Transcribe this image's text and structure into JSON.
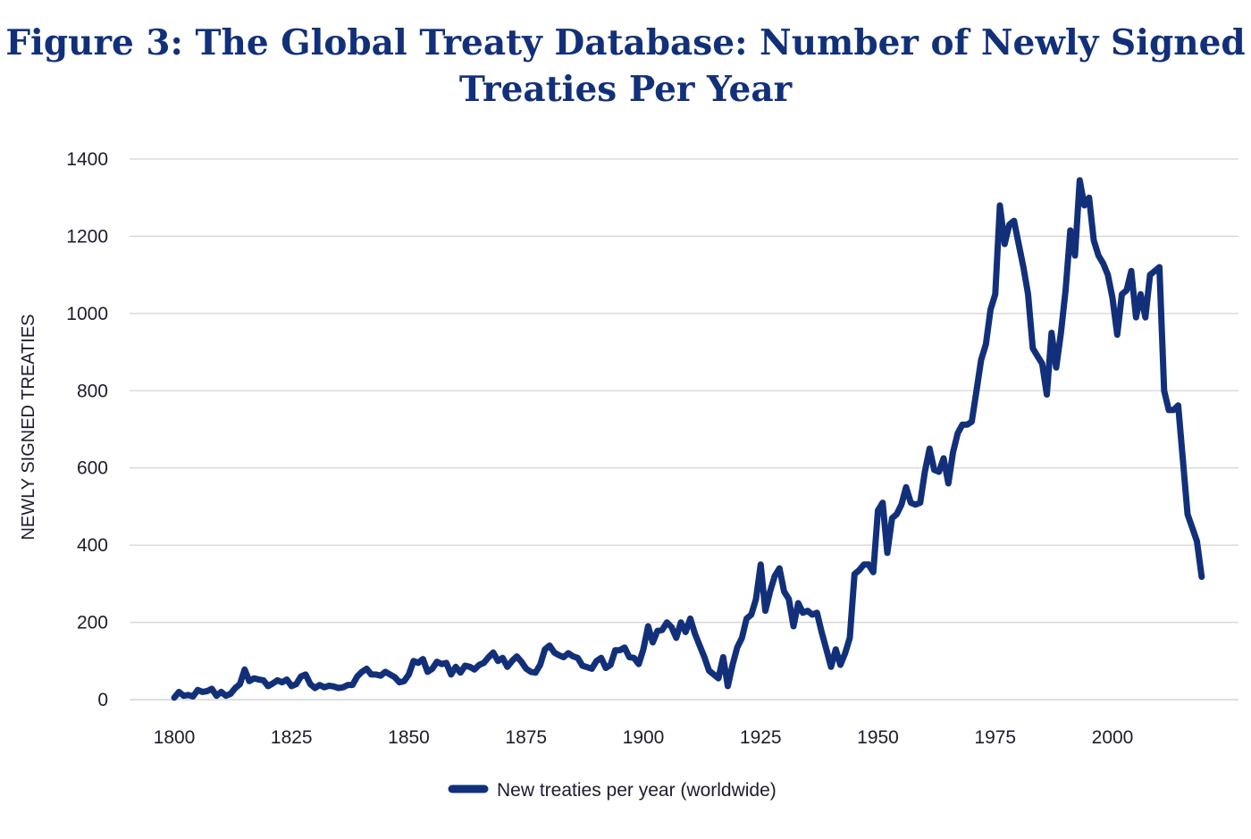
{
  "title_lines": [
    "Figure 3: The Global Treaty Database: Number of Newly Signed",
    "Treaties Per Year"
  ],
  "colors": {
    "series": "#12307a",
    "title": "#12307a",
    "grid": "#d4d4d4",
    "text": "#1c1c2e"
  },
  "chart_data": {
    "type": "line",
    "title": "Figure 3: The Global Treaty Database: Number of Newly Signed Treaties Per Year",
    "xlabel": "",
    "ylabel": "NEWLY SIGNED TREATIES",
    "xlim": [
      1800,
      2019
    ],
    "ylim": [
      0,
      1400
    ],
    "x_ticks": [
      1800,
      1825,
      1850,
      1875,
      1900,
      1925,
      1950,
      1975,
      2000
    ],
    "y_ticks": [
      0,
      200,
      400,
      600,
      800,
      1000,
      1200,
      1400
    ],
    "grid": "horizontal",
    "legend_position": "bottom",
    "series": [
      {
        "name": "New treaties per year (worldwide)",
        "x": [
          1800,
          1801,
          1802,
          1803,
          1804,
          1805,
          1806,
          1807,
          1808,
          1809,
          1810,
          1811,
          1812,
          1813,
          1814,
          1815,
          1816,
          1817,
          1818,
          1819,
          1820,
          1821,
          1822,
          1823,
          1824,
          1825,
          1826,
          1827,
          1828,
          1829,
          1830,
          1831,
          1832,
          1833,
          1834,
          1835,
          1836,
          1837,
          1838,
          1839,
          1840,
          1841,
          1842,
          1843,
          1844,
          1845,
          1846,
          1847,
          1848,
          1849,
          1850,
          1851,
          1852,
          1853,
          1854,
          1855,
          1856,
          1857,
          1858,
          1859,
          1860,
          1861,
          1862,
          1863,
          1864,
          1865,
          1866,
          1867,
          1868,
          1869,
          1870,
          1871,
          1872,
          1873,
          1874,
          1875,
          1876,
          1877,
          1878,
          1879,
          1880,
          1881,
          1882,
          1883,
          1884,
          1885,
          1886,
          1887,
          1888,
          1889,
          1890,
          1891,
          1892,
          1893,
          1894,
          1895,
          1896,
          1897,
          1898,
          1899,
          1900,
          1901,
          1902,
          1903,
          1904,
          1905,
          1906,
          1907,
          1908,
          1909,
          1910,
          1911,
          1912,
          1913,
          1914,
          1915,
          1916,
          1917,
          1918,
          1919,
          1920,
          1921,
          1922,
          1923,
          1924,
          1925,
          1926,
          1927,
          1928,
          1929,
          1930,
          1931,
          1932,
          1933,
          1934,
          1935,
          1936,
          1937,
          1938,
          1939,
          1940,
          1941,
          1942,
          1943,
          1944,
          1945,
          1946,
          1947,
          1948,
          1949,
          1950,
          1951,
          1952,
          1953,
          1954,
          1955,
          1956,
          1957,
          1958,
          1959,
          1960,
          1961,
          1962,
          1963,
          1964,
          1965,
          1966,
          1967,
          1968,
          1969,
          1970,
          1971,
          1972,
          1973,
          1974,
          1975,
          1976,
          1977,
          1978,
          1979,
          1980,
          1981,
          1982,
          1983,
          1984,
          1985,
          1986,
          1987,
          1988,
          1989,
          1990,
          1991,
          1992,
          1993,
          1994,
          1995,
          1996,
          1997,
          1998,
          1999,
          2000,
          2001,
          2002,
          2003,
          2004,
          2005,
          2006,
          2007,
          2008,
          2009,
          2010,
          2011,
          2012,
          2013,
          2014,
          2015,
          2016,
          2017,
          2018,
          2019
        ],
        "values": [
          5,
          20,
          10,
          12,
          8,
          25,
          20,
          22,
          28,
          10,
          20,
          10,
          15,
          30,
          40,
          78,
          48,
          55,
          52,
          50,
          35,
          42,
          50,
          45,
          52,
          35,
          40,
          60,
          65,
          40,
          30,
          38,
          32,
          36,
          34,
          30,
          32,
          38,
          38,
          60,
          72,
          80,
          65,
          65,
          62,
          72,
          65,
          58,
          45,
          48,
          65,
          100,
          95,
          105,
          72,
          80,
          98,
          92,
          95,
          65,
          85,
          70,
          88,
          85,
          78,
          90,
          95,
          110,
          122,
          100,
          108,
          85,
          100,
          112,
          98,
          80,
          72,
          70,
          90,
          130,
          140,
          122,
          115,
          110,
          120,
          112,
          108,
          88,
          84,
          80,
          100,
          108,
          82,
          90,
          128,
          128,
          135,
          110,
          108,
          92,
          130,
          190,
          148,
          178,
          180,
          200,
          188,
          160,
          200,
          175,
          210,
          170,
          140,
          110,
          75,
          65,
          55,
          110,
          35,
          90,
          135,
          160,
          210,
          220,
          260,
          350,
          230,
          280,
          320,
          340,
          280,
          260,
          190,
          250,
          225,
          230,
          220,
          225,
          175,
          130,
          85,
          130,
          90,
          120,
          160,
          325,
          335,
          350,
          350,
          330,
          490,
          510,
          380,
          470,
          480,
          505,
          550,
          510,
          505,
          510,
          590,
          650,
          595,
          590,
          625,
          560,
          640,
          690,
          712,
          712,
          720,
          800,
          880,
          920,
          1010,
          1050,
          1280,
          1180,
          1230,
          1240,
          1180,
          1120,
          1050,
          910,
          890,
          870,
          790,
          950,
          860,
          950,
          1060,
          1215,
          1150,
          1345,
          1280,
          1300,
          1190,
          1150,
          1130,
          1100,
          1040,
          945,
          1050,
          1060,
          1110,
          990,
          1050,
          990,
          1100,
          1110,
          1120,
          800,
          750,
          750,
          762,
          620,
          480,
          445,
          410,
          318
        ]
      }
    ]
  }
}
